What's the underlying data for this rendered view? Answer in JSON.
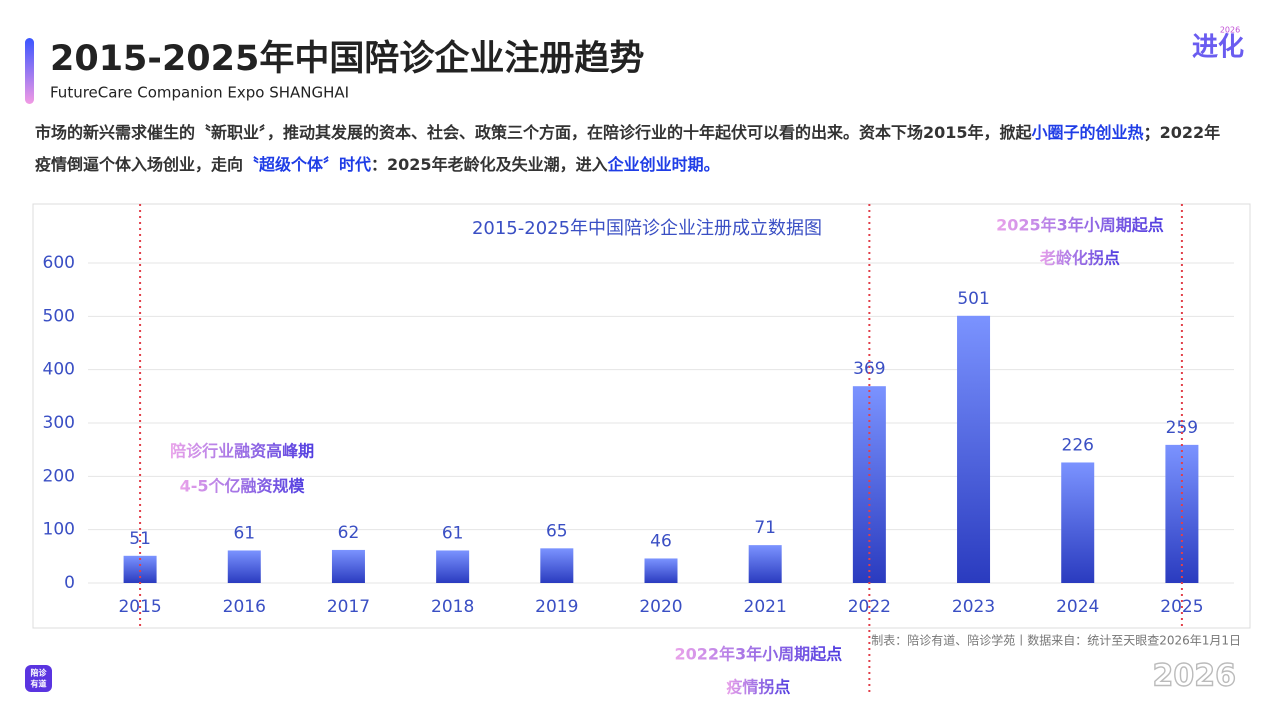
{
  "header": {
    "title": "2015-2025年中国陪诊企业注册趋势",
    "subtitle": "FutureCare Companion Expo SHANGHAI"
  },
  "logo": {
    "mark": "进化",
    "year": "2026"
  },
  "paragraph": [
    {
      "text": "市场的新兴需求催生的〝新职业〞，推动其发展的资本、社会、政策三个方面，在陪诊行业的十年起伏可以看的出来。资本下场2015年，掀起",
      "highlight": false
    },
    {
      "text": "小圈子的创业热",
      "highlight": true
    },
    {
      "text": "；2022年疫情倒逼个体入场创业，走向",
      "highlight": false
    },
    {
      "text": "〝超级个体〞时代",
      "highlight": true
    },
    {
      "text": "：2025年老龄化及失业潮，进入",
      "highlight": false
    },
    {
      "text": "企业创业时期。",
      "highlight": true
    }
  ],
  "chart_data": {
    "type": "bar",
    "title": "2015-2025年中国陪诊企业注册成立数据图",
    "categories": [
      "2015",
      "2016",
      "2017",
      "2018",
      "2019",
      "2020",
      "2021",
      "2022",
      "2023",
      "2024",
      "2025"
    ],
    "values": [
      51,
      61,
      62,
      61,
      65,
      46,
      71,
      369,
      501,
      226,
      259
    ],
    "colors": [
      "#7b93ff",
      "#2a3bbf"
    ],
    "ylim": [
      0,
      600
    ],
    "yticks": [
      0,
      100,
      200,
      300,
      400,
      500,
      600
    ],
    "grid": true,
    "annotation_colors": [
      "#eaa3ea",
      "#4f3ce0"
    ],
    "annotations": [
      {
        "category": "2015",
        "lines": [
          "陪诊行业融资高峰期",
          "4-5个亿融资规模"
        ]
      },
      {
        "category": "2022",
        "lines": [
          "2022年3年小周期起点",
          "疫情拐点"
        ]
      },
      {
        "category": "2025",
        "lines": [
          "2025年3年小周期起点",
          "老龄化拐点"
        ]
      }
    ]
  },
  "footer": {
    "source": "制表：陪诊有道、陪诊学苑丨数据来自：统计至天眼查2026年1月1日",
    "brand": [
      "陪诊",
      "有道"
    ],
    "year_mark": "2026"
  }
}
